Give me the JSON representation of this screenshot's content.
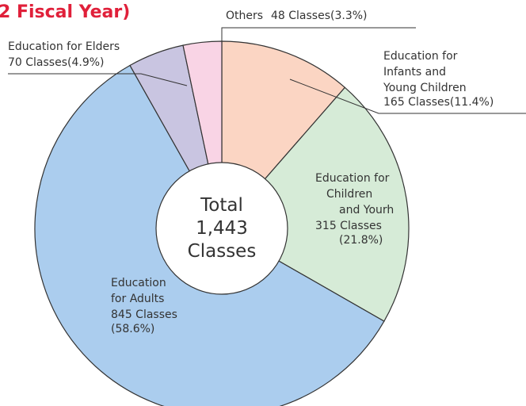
{
  "chart_data": {
    "type": "donut",
    "title": "2 Fiscal Year)",
    "center_label": "Total\n1,443\nClasses",
    "categories": [
      "Education for\nInfants and\nYoung Children",
      "Education for\nChildren\nand Yourh",
      "Education\nfor Adults",
      "Education for Elders",
      "Others"
    ],
    "values": [
      165,
      315,
      845,
      70,
      48
    ],
    "value_labels": [
      "165 Classes(11.4%)",
      "315 Classes\n(21.8%)",
      "845 Classes\n(58.6%)",
      "70 Classes(4.9%)",
      "48 Classes(3.3%)"
    ],
    "colors": [
      "#fbd5c3",
      "#d6ebd7",
      "#abcdee",
      "#c9c5e1",
      "#f9d4e5"
    ]
  }
}
